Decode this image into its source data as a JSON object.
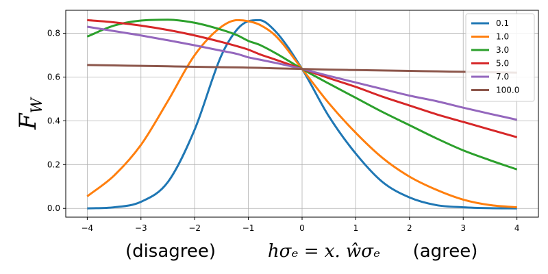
{
  "chart_data": {
    "type": "line",
    "title": "",
    "ylabel": "F_W",
    "ylabel_main": "F",
    "ylabel_sub": "W",
    "xlabel_left": "(disagree)",
    "xlabel_math": "hσₑ = x. ŵσₑ",
    "xlabel_right": "(agree)",
    "xlim": [
      -4.4,
      4.4
    ],
    "ylim": [
      -0.04,
      0.905
    ],
    "xticks": [
      -4,
      -3,
      -2,
      -1,
      0,
      1,
      2,
      3,
      4
    ],
    "xtick_labels": [
      "−4",
      "−3",
      "−2",
      "−1",
      "0",
      "1",
      "2",
      "3",
      "4"
    ],
    "yticks": [
      0.0,
      0.2,
      0.4,
      0.6,
      0.8
    ],
    "ytick_labels": [
      "0.0",
      "0.2",
      "0.4",
      "0.6",
      "0.8"
    ],
    "grid": true,
    "legend_position": "top-right",
    "x": [
      -4,
      -3.5,
      -3,
      -2.5,
      -2,
      -1.5,
      -1.2,
      -1,
      -0.8,
      -0.5,
      0,
      0.5,
      1,
      1.5,
      2,
      2.5,
      3,
      3.5,
      4
    ],
    "series": [
      {
        "name": "0.1",
        "color": "#1f77b4",
        "values": [
          0.0,
          0.005,
          0.03,
          0.12,
          0.36,
          0.7,
          0.82,
          0.855,
          0.86,
          0.81,
          0.637,
          0.42,
          0.25,
          0.12,
          0.05,
          0.015,
          0.005,
          0.001,
          0.0
        ]
      },
      {
        "name": "1.0",
        "color": "#ff7f0e",
        "values": [
          0.055,
          0.15,
          0.29,
          0.49,
          0.7,
          0.83,
          0.86,
          0.855,
          0.84,
          0.79,
          0.637,
          0.48,
          0.345,
          0.23,
          0.145,
          0.085,
          0.04,
          0.015,
          0.005
        ]
      },
      {
        "name": "3.0",
        "color": "#2ca02c",
        "values": [
          0.785,
          0.835,
          0.858,
          0.862,
          0.848,
          0.816,
          0.79,
          0.765,
          0.748,
          0.71,
          0.637,
          0.57,
          0.505,
          0.44,
          0.38,
          0.32,
          0.265,
          0.22,
          0.178
        ]
      },
      {
        "name": "5.0",
        "color": "#d62728",
        "values": [
          0.86,
          0.85,
          0.835,
          0.815,
          0.79,
          0.76,
          0.74,
          0.725,
          0.705,
          0.68,
          0.637,
          0.595,
          0.555,
          0.51,
          0.47,
          0.43,
          0.395,
          0.36,
          0.325
        ]
      },
      {
        "name": "7.0",
        "color": "#9467bd",
        "values": [
          0.83,
          0.81,
          0.79,
          0.768,
          0.745,
          0.72,
          0.705,
          0.69,
          0.68,
          0.665,
          0.637,
          0.605,
          0.575,
          0.545,
          0.515,
          0.49,
          0.46,
          0.432,
          0.405
        ]
      },
      {
        "name": "100.0",
        "color": "#8c564b",
        "values": [
          0.655,
          0.653,
          0.651,
          0.649,
          0.647,
          0.645,
          0.644,
          0.643,
          0.642,
          0.64,
          0.637,
          0.634,
          0.632,
          0.63,
          0.628,
          0.626,
          0.624,
          0.622,
          0.62
        ]
      }
    ]
  }
}
